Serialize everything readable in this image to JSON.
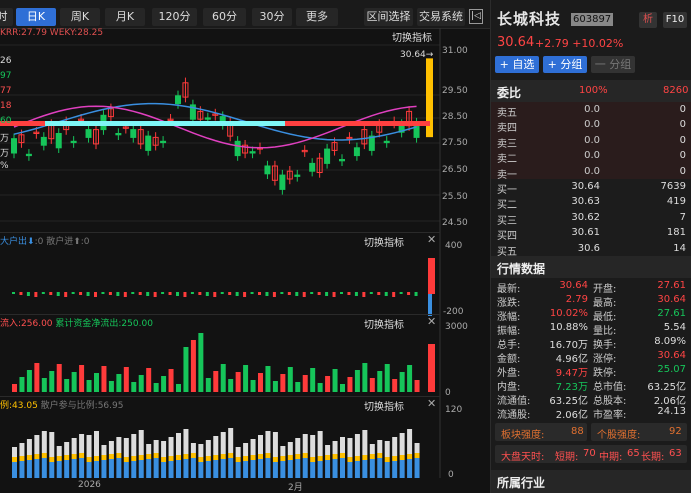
{
  "toolbar": {
    "tabs": [
      {
        "label": "分时"
      },
      {
        "label": "日K"
      },
      {
        "label": "周K"
      },
      {
        "label": "月K"
      },
      {
        "label": "120分"
      },
      {
        "label": "60分"
      },
      {
        "label": "30分"
      },
      {
        "label": "更多"
      }
    ],
    "region_select": "区间选择",
    "trade_system": "交易系统"
  },
  "main_chart": {
    "indicator_text": "KRR:27.79 WEKY:28.25",
    "switch_label": "切换指标",
    "high_label": "30.64→",
    "y_ticks": [
      "31.00",
      "29.50",
      "28.50",
      "27.50",
      "26.50",
      "25.50",
      "24.50"
    ],
    "left_labels": [
      "26",
      "97",
      "77",
      "18",
      "60",
      "万",
      "万",
      "%"
    ],
    "colors": {
      "up": "#ff3b3b",
      "down": "#16c55a",
      "ma1": "#e040c0",
      "ma2": "#3a8fe0",
      "band_left": "#7ff7f7",
      "band_right": "#ff4040",
      "last": "#ffc000"
    }
  },
  "pane2": {
    "label_a": "大户出",
    "value_a": ":0",
    "label_b": " 散户进",
    "value_b": ":0",
    "switch_label": "切换指标",
    "y_top": "400",
    "y_bottom": "-200"
  },
  "pane3": {
    "label_a": "流入:256.00",
    "label_b": " 累计资金净流出:250.00",
    "switch_label": "切换指标",
    "y_top": "3000",
    "y_bottom": "0"
  },
  "pane4": {
    "label_a": "例:43.05",
    "label_b": " 散户参与比例:56.95",
    "switch_label": "切换指标",
    "y_top": "120",
    "y_bottom": "0"
  },
  "x_axis": {
    "label_a": "2026",
    "label_b": "2月"
  },
  "stock": {
    "name": "长城科技",
    "code": "603897",
    "new_label": "析",
    "f10_label": "F10",
    "price": "30.64",
    "change": "+2.79",
    "change_pct": "+10.02%"
  },
  "buttons": {
    "watch": "+ 自选",
    "group": "+ 分组",
    "sub_group": "一 分组"
  },
  "order_book": {
    "title": "委比",
    "ratio": "100%",
    "diff": "8260",
    "rows": [
      {
        "label": "卖五",
        "price": "0.0",
        "vol": "0"
      },
      {
        "label": "卖四",
        "price": "0.0",
        "vol": "0"
      },
      {
        "label": "卖三",
        "price": "0.0",
        "vol": "0"
      },
      {
        "label": "卖二",
        "price": "0.0",
        "vol": "0"
      },
      {
        "label": "卖一",
        "price": "0.0",
        "vol": "0"
      },
      {
        "label": "买一",
        "price": "30.64",
        "vol": "7639"
      },
      {
        "label": "买二",
        "price": "30.63",
        "vol": "419"
      },
      {
        "label": "买三",
        "price": "30.62",
        "vol": "7"
      },
      {
        "label": "买四",
        "price": "30.61",
        "vol": "181"
      },
      {
        "label": "买五",
        "price": "30.6",
        "vol": "14"
      }
    ]
  },
  "quotes": {
    "title": "行情数据",
    "rows": [
      {
        "l1": "最新:",
        "v1": "30.64",
        "c1": "#ff4444",
        "l2": "开盘:",
        "v2": "27.61",
        "c2": "#ff4444"
      },
      {
        "l1": "涨跌:",
        "v1": "2.79",
        "c1": "#ff4444",
        "l2": "最高:",
        "v2": "30.64",
        "c2": "#ff4444"
      },
      {
        "l1": "涨幅:",
        "v1": "10.02%",
        "c1": "#ff4444",
        "l2": "最低:",
        "v2": "27.61",
        "c2": "#16c55a"
      },
      {
        "l1": "振幅:",
        "v1": "10.88%",
        "c1": "#dddddd",
        "l2": "量比:",
        "v2": "5.54",
        "c2": "#dddddd"
      },
      {
        "l1": "总手:",
        "v1": "16.70万",
        "c1": "#dddddd",
        "l2": "换手:",
        "v2": "8.09%",
        "c2": "#dddddd"
      },
      {
        "l1": "金额:",
        "v1": "4.96亿",
        "c1": "#dddddd",
        "l2": "涨停:",
        "v2": "30.64",
        "c2": "#ff4444"
      },
      {
        "l1": "外盘:",
        "v1": "9.47万",
        "c1": "#ff4444",
        "l2": "跌停:",
        "v2": "25.07",
        "c2": "#16c55a"
      },
      {
        "l1": "内盘:",
        "v1": "7.23万",
        "c1": "#16c55a",
        "l2": "总市值:",
        "v2": "63.25亿",
        "c2": "#dddddd"
      },
      {
        "l1": "流通值:",
        "v1": "63.25亿",
        "c1": "#dddddd",
        "l2": "总股本:",
        "v2": "2.06亿",
        "c2": "#dddddd"
      },
      {
        "l1": "流通股:",
        "v1": "2.06亿",
        "c1": "#dddddd",
        "l2": "市盈率:",
        "v2": "24.13",
        "c2": "#dddddd"
      }
    ]
  },
  "strength": {
    "sector_label": "板块强度:",
    "sector_value": "88",
    "stock_label": "个股强度:",
    "stock_value": "92"
  },
  "market": {
    "label": "大盘天时:",
    "short_label": "短期:",
    "short": "70",
    "mid_label": "中期:",
    "mid": "65",
    "long_label": "长期:",
    "long": "63"
  },
  "industry": {
    "title": "所属行业"
  }
}
